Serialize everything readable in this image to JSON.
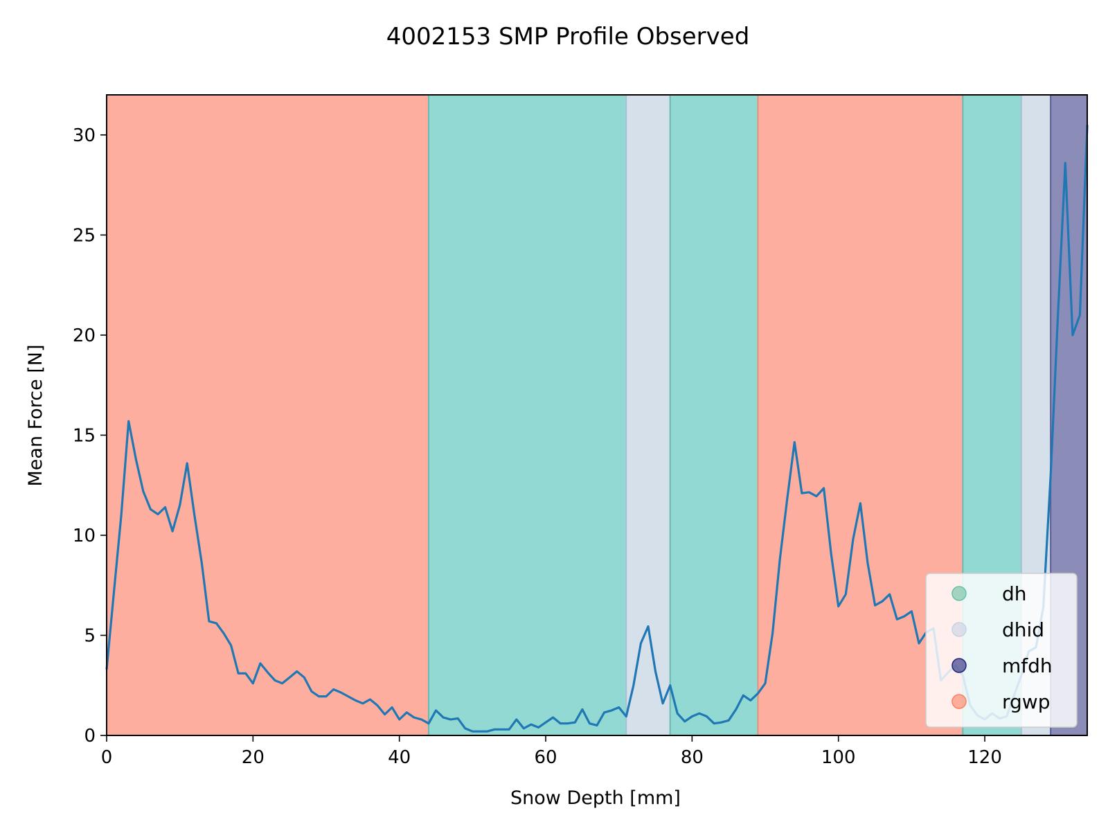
{
  "chart_data": {
    "type": "line",
    "title": "4002153 SMP Profile Observed",
    "xlabel": "Snow Depth [mm]",
    "ylabel": "Mean Force [N]",
    "xlim": [
      0,
      134
    ],
    "ylim": [
      0,
      32
    ],
    "xticks": [
      0,
      20,
      40,
      60,
      80,
      100,
      120
    ],
    "yticks": [
      0,
      5,
      10,
      15,
      20,
      25,
      30
    ],
    "grid": false,
    "legend_placement": "lower-right",
    "legend": [
      {
        "label": "dh",
        "color": "#66c2a5"
      },
      {
        "label": "dhid",
        "color": "#c6d2e3"
      },
      {
        "label": "mfdh",
        "color": "#1f2379"
      },
      {
        "label": "rgwp",
        "color": "#fb8060"
      }
    ],
    "regions": [
      {
        "label": "rgwp",
        "x_start": 0,
        "x_end": 44,
        "color": "#fdae9f"
      },
      {
        "label": "dh",
        "x_start": 44,
        "x_end": 71,
        "color": "#92d8d3"
      },
      {
        "label": "dhid",
        "x_start": 71,
        "x_end": 77,
        "color": "#d6e0eb"
      },
      {
        "label": "dh",
        "x_start": 77,
        "x_end": 89,
        "color": "#92d8d3"
      },
      {
        "label": "rgwp",
        "x_start": 89,
        "x_end": 117,
        "color": "#fdae9f"
      },
      {
        "label": "dh",
        "x_start": 117,
        "x_end": 125,
        "color": "#92d8d3"
      },
      {
        "label": "dhid",
        "x_start": 125,
        "x_end": 129,
        "color": "#d6e0eb"
      },
      {
        "label": "mfdh",
        "x_start": 129,
        "x_end": 134,
        "color": "#8c8cb8"
      }
    ],
    "series": [
      {
        "color": "#1f77b4",
        "x": [
          0,
          1,
          2,
          3,
          4,
          5,
          6,
          7,
          8,
          9,
          10,
          11,
          12,
          13,
          14,
          15,
          16,
          17,
          18,
          19,
          20,
          21,
          22,
          23,
          24,
          25,
          26,
          27,
          28,
          29,
          30,
          31,
          32,
          33,
          34,
          35,
          36,
          37,
          38,
          39,
          40,
          41,
          42,
          43,
          44,
          45,
          46,
          47,
          48,
          49,
          50,
          51,
          52,
          53,
          54,
          55,
          56,
          57,
          58,
          59,
          60,
          61,
          62,
          63,
          64,
          65,
          66,
          67,
          68,
          69,
          70,
          71,
          72,
          73,
          74,
          75,
          76,
          77,
          78,
          79,
          80,
          81,
          82,
          83,
          84,
          85,
          86,
          87,
          88,
          89,
          90,
          91,
          92,
          93,
          94,
          95,
          96,
          97,
          98,
          99,
          100,
          101,
          102,
          103,
          104,
          105,
          106,
          107,
          108,
          109,
          110,
          111,
          112,
          113,
          114,
          115,
          116,
          117,
          118,
          119,
          120,
          121,
          122,
          123,
          124,
          125,
          126,
          127,
          128,
          129,
          130,
          131,
          132,
          133,
          134
        ],
        "values": [
          3.3,
          7.2,
          11.0,
          15.7,
          13.8,
          12.2,
          11.3,
          11.05,
          11.4,
          10.2,
          11.5,
          13.6,
          11.0,
          8.6,
          5.7,
          5.6,
          5.1,
          4.5,
          3.1,
          3.1,
          2.6,
          3.6,
          3.15,
          2.75,
          2.6,
          2.9,
          3.2,
          2.9,
          2.2,
          1.95,
          1.95,
          2.3,
          2.15,
          1.95,
          1.75,
          1.6,
          1.8,
          1.5,
          1.05,
          1.4,
          0.8,
          1.15,
          0.9,
          0.8,
          0.6,
          1.25,
          0.9,
          0.8,
          0.85,
          0.35,
          0.2,
          0.2,
          0.2,
          0.3,
          0.3,
          0.3,
          0.8,
          0.35,
          0.55,
          0.4,
          0.65,
          0.9,
          0.6,
          0.6,
          0.65,
          1.3,
          0.6,
          0.5,
          1.15,
          1.25,
          1.4,
          0.95,
          2.5,
          4.6,
          5.45,
          3.2,
          1.6,
          2.5,
          1.1,
          0.7,
          0.95,
          1.1,
          0.95,
          0.6,
          0.65,
          0.75,
          1.3,
          2.0,
          1.75,
          2.1,
          2.6,
          5.1,
          8.8,
          11.8,
          14.65,
          12.1,
          12.15,
          11.95,
          12.35,
          9.1,
          6.45,
          7.05,
          9.8,
          11.6,
          8.6,
          6.5,
          6.7,
          7.05,
          5.8,
          5.95,
          6.2,
          4.6,
          5.15,
          5.35,
          2.75,
          3.15,
          3.5,
          3.0,
          1.5,
          1.0,
          0.8,
          1.1,
          0.85,
          0.95,
          2.0,
          3.0,
          4.2,
          4.4,
          6.4,
          13.0,
          21.0,
          28.6,
          20.0,
          21.0,
          30.5
        ]
      }
    ]
  }
}
